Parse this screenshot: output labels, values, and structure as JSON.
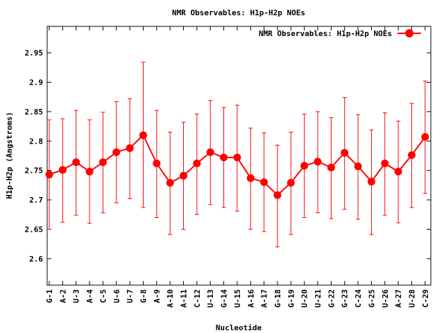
{
  "chart_data": {
    "type": "line",
    "title": "NMR Observables: H1p-H2p NOEs",
    "xlabel": "Nucleotide",
    "ylabel": "H1p-H2p (Angstroms)",
    "ylim": [
      2.555,
      2.995
    ],
    "yticks": [
      "2.6",
      "2.65",
      "2.7",
      "2.75",
      "2.8",
      "2.85",
      "2.9",
      "2.95"
    ],
    "grid": false,
    "legend_position": "top-right",
    "categories": [
      "G-1",
      "A-2",
      "U-3",
      "A-4",
      "C-5",
      "U-6",
      "U-7",
      "G-8",
      "A-9",
      "A-10",
      "A-11",
      "C-12",
      "U-13",
      "G-14",
      "U-15",
      "A-16",
      "A-17",
      "G-18",
      "G-19",
      "U-20",
      "U-21",
      "G-22",
      "G-23",
      "C-24",
      "G-25",
      "U-26",
      "A-27",
      "U-28",
      "C-29"
    ],
    "series": [
      {
        "name": "NMR Observables: H1p-H2p NOEs",
        "color": "#ff0000",
        "values": [
          2.743,
          2.751,
          2.764,
          2.748,
          2.764,
          2.781,
          2.788,
          2.81,
          2.762,
          2.729,
          2.741,
          2.762,
          2.781,
          2.772,
          2.772,
          2.737,
          2.73,
          2.708,
          2.729,
          2.758,
          2.765,
          2.755,
          2.78,
          2.757,
          2.731,
          2.762,
          2.748,
          2.776,
          2.807
        ],
        "err_low": [
          2.65,
          2.662,
          2.674,
          2.66,
          2.678,
          2.695,
          2.702,
          2.687,
          2.67,
          2.641,
          2.65,
          2.675,
          2.692,
          2.687,
          2.681,
          2.65,
          2.646,
          2.62,
          2.641,
          2.67,
          2.678,
          2.668,
          2.684,
          2.667,
          2.641,
          2.674,
          2.661,
          2.687,
          2.711
        ],
        "err_high": [
          2.836,
          2.838,
          2.852,
          2.836,
          2.849,
          2.867,
          2.872,
          2.934,
          2.852,
          2.815,
          2.832,
          2.846,
          2.869,
          2.857,
          2.861,
          2.822,
          2.814,
          2.793,
          2.815,
          2.846,
          2.85,
          2.84,
          2.874,
          2.845,
          2.819,
          2.848,
          2.834,
          2.864,
          2.902
        ]
      }
    ]
  }
}
